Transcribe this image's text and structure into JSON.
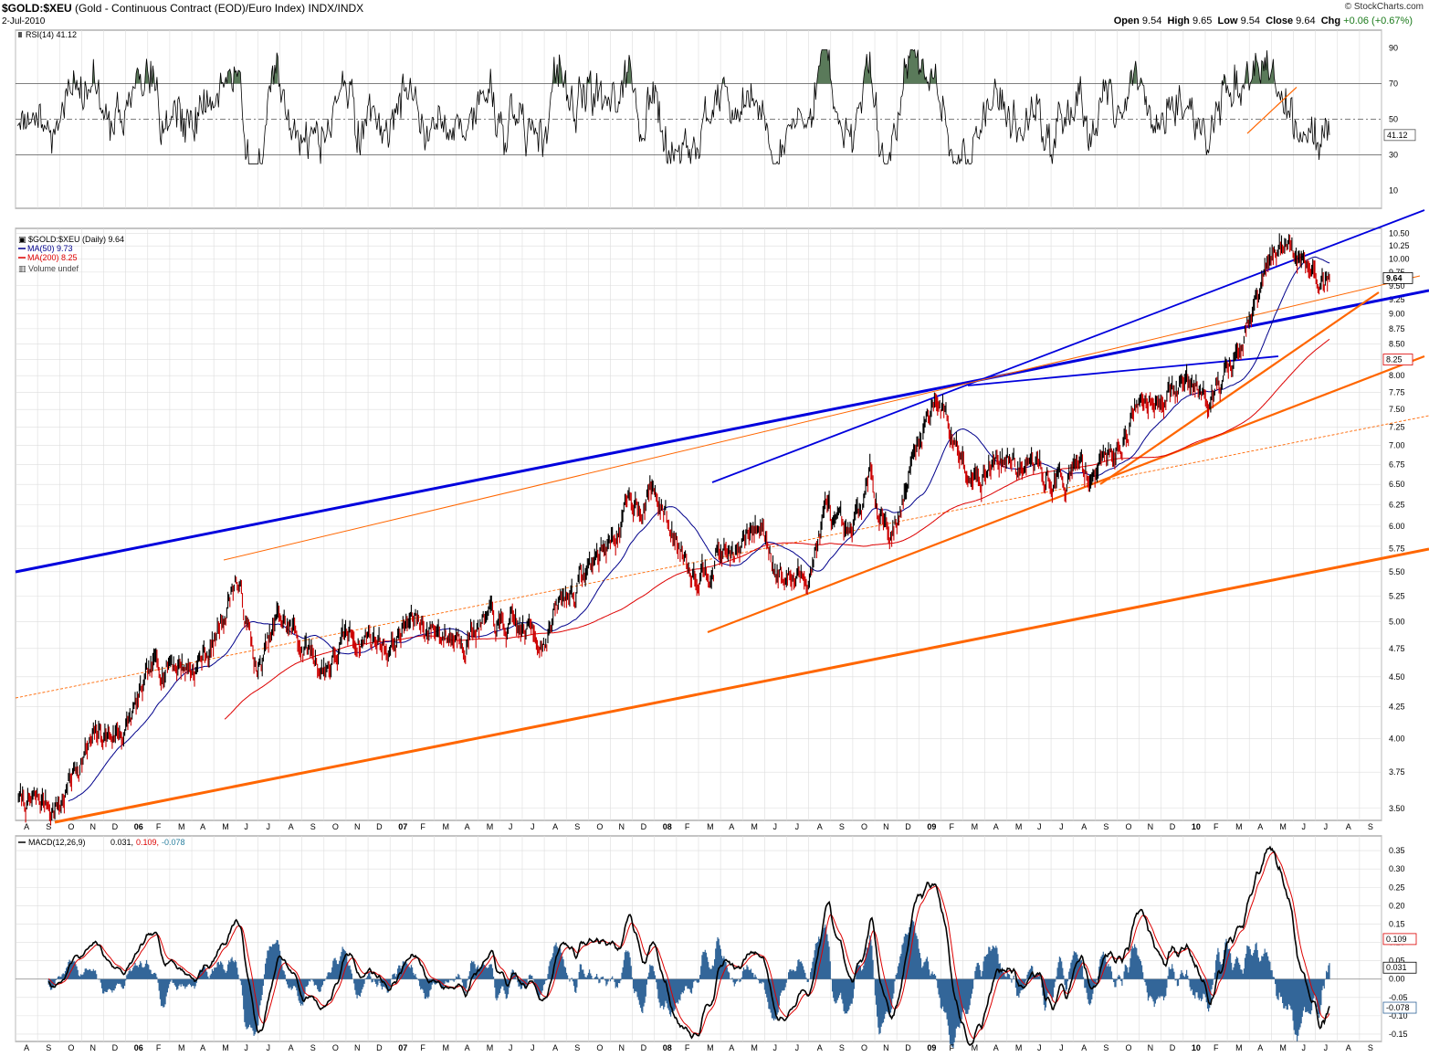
{
  "header": {
    "symbol": "$GOLD:$XEU",
    "description": "(Gold - Continuous Contract (EOD)/Euro Index)",
    "exchange": "INDX/INDX",
    "date": "2-Jul-2010",
    "credit": "© StockCharts.com",
    "ohlc": {
      "open_label": "Open",
      "open": "9.54",
      "high_label": "High",
      "high": "9.65",
      "low_label": "Low",
      "low": "9.54",
      "close_label": "Close",
      "close": "9.64",
      "chg_label": "Chg",
      "chg": "+0.06 (+0.67%)"
    }
  },
  "colors": {
    "price_up": "#000000",
    "price_down": "#cc0000",
    "ma50": "#00008b",
    "ma200": "#dd0000",
    "trend_blue": "#0000dd",
    "trend_orange": "#ff6600",
    "rsi_fill": "#5a7a5a",
    "macd_hist": "#336699",
    "macd_signal": "#dd0000",
    "macd_line": "#000000",
    "grid": "#dddddd"
  },
  "panels": {
    "rsi": {
      "legend": "RSI(14) 41.12",
      "current_label": "41.12",
      "ticks": [
        "90",
        "70",
        "50",
        "30",
        "10"
      ],
      "levels": [
        90,
        70,
        50,
        30,
        10
      ]
    },
    "price": {
      "legend_main": "$GOLD:$XEU (Daily) 9.64",
      "legend_ma50": "MA(50) 9.73",
      "legend_ma200": "MA(200) 8.25",
      "legend_volume": "Volume undef",
      "current_label": "9.64",
      "ma200_label": "8.25",
      "ticks": [
        "10.50",
        "10.25",
        "10.00",
        "9.75",
        "9.50",
        "9.25",
        "9.00",
        "8.75",
        "8.50",
        "8.25",
        "8.00",
        "7.75",
        "7.50",
        "7.25",
        "7.00",
        "6.75",
        "6.50",
        "6.25",
        "6.00",
        "5.75",
        "5.50",
        "5.25",
        "5.00",
        "4.75",
        "4.50",
        "4.25",
        "4.00",
        "3.75",
        "3.50"
      ],
      "tick_values": [
        10.5,
        10.25,
        10,
        9.75,
        9.5,
        9.25,
        9,
        8.75,
        8.5,
        8.25,
        8,
        7.75,
        7.5,
        7.25,
        7,
        6.75,
        6.5,
        6.25,
        6,
        5.75,
        5.5,
        5.25,
        5,
        4.75,
        4.5,
        4.25,
        4,
        3.75,
        3.5
      ]
    },
    "macd": {
      "legend_main": "MACD(12,26,9)",
      "legend_macd": "0.031,",
      "legend_signal": "0.109,",
      "legend_hist": "-0.078",
      "labels": [
        "0.109",
        "0.031",
        "-0.078"
      ],
      "ticks": [
        "0.35",
        "0.30",
        "0.25",
        "0.20",
        "0.15",
        "0.10",
        "0.05",
        "0.00",
        "-0.05",
        "-0.10",
        "-0.15"
      ],
      "tick_values": [
        0.35,
        0.3,
        0.25,
        0.2,
        0.15,
        0.1,
        0.05,
        0.0,
        -0.05,
        -0.1,
        -0.15
      ]
    }
  },
  "chart_data": {
    "type": "line",
    "scale": "log",
    "x_axis_labels": [
      "A",
      "S",
      "O",
      "N",
      "D",
      "06",
      "F",
      "M",
      "A",
      "M",
      "J",
      "J",
      "A",
      "S",
      "O",
      "N",
      "D",
      "07",
      "F",
      "M",
      "A",
      "M",
      "J",
      "J",
      "A",
      "S",
      "O",
      "N",
      "D",
      "08",
      "F",
      "M",
      "A",
      "M",
      "J",
      "J",
      "A",
      "S",
      "O",
      "N",
      "D",
      "09",
      "F",
      "M",
      "A",
      "M",
      "J",
      "J",
      "A",
      "S",
      "O",
      "N",
      "D",
      "10",
      "F",
      "M",
      "A",
      "M",
      "J",
      "J",
      "A",
      "S"
    ],
    "year_labels": [
      "06",
      "07",
      "08",
      "09",
      "10"
    ],
    "price_anchors": {
      "x": [
        "2005-07",
        "2005-08",
        "2005-09",
        "2005-10",
        "2005-11",
        "2005-12",
        "2006-01",
        "2006-02",
        "2006-03",
        "2006-04",
        "2006-05",
        "2006-06",
        "2006-07",
        "2006-08",
        "2006-09",
        "2006-10",
        "2006-11",
        "2006-12",
        "2007-01",
        "2007-02",
        "2007-03",
        "2007-04",
        "2007-05",
        "2007-06",
        "2007-07",
        "2007-08",
        "2007-09",
        "2007-10",
        "2007-11",
        "2007-12",
        "2008-01",
        "2008-02",
        "2008-03",
        "2008-04",
        "2008-05",
        "2008-06",
        "2008-07",
        "2008-08",
        "2008-09",
        "2008-10",
        "2008-11",
        "2008-12",
        "2009-01",
        "2009-02",
        "2009-03",
        "2009-04",
        "2009-05",
        "2009-06",
        "2009-07",
        "2009-08",
        "2009-09",
        "2009-10",
        "2009-11",
        "2009-12",
        "2010-01",
        "2010-02",
        "2010-03",
        "2010-04",
        "2010-05",
        "2010-06",
        "2010-07"
      ],
      "y": [
        3.55,
        3.5,
        3.55,
        3.9,
        4.0,
        4.1,
        4.4,
        4.7,
        4.6,
        4.8,
        5.5,
        4.5,
        5.0,
        4.8,
        4.6,
        4.8,
        4.9,
        4.8,
        5.0,
        4.95,
        4.9,
        5.05,
        4.9,
        4.85,
        4.9,
        5.2,
        5.5,
        5.8,
        6.2,
        6.5,
        5.9,
        5.6,
        5.8,
        5.7,
        6.0,
        5.5,
        5.4,
        6.2,
        5.6,
        6.5,
        6.0,
        6.8,
        7.8,
        7.0,
        6.8,
        6.9,
        6.7,
        6.6,
        6.6,
        6.7,
        6.9,
        7.5,
        7.9,
        7.8,
        7.9,
        8.0,
        8.3,
        9.5,
        10.25,
        10.0,
        9.64
      ]
    },
    "ma50": {
      "current": 9.73
    },
    "ma200": {
      "current": 8.25
    },
    "rsi14": {
      "current": 41.12,
      "overbought": 70,
      "oversold": 30,
      "midline": 50
    },
    "macd": {
      "macd": 0.031,
      "signal": 0.109,
      "histogram": -0.078,
      "params": "12,26,9"
    },
    "ohlc_last": {
      "open": 9.54,
      "high": 9.65,
      "low": 9.54,
      "close": 9.64,
      "change": 0.06,
      "change_pct": 0.67
    }
  }
}
